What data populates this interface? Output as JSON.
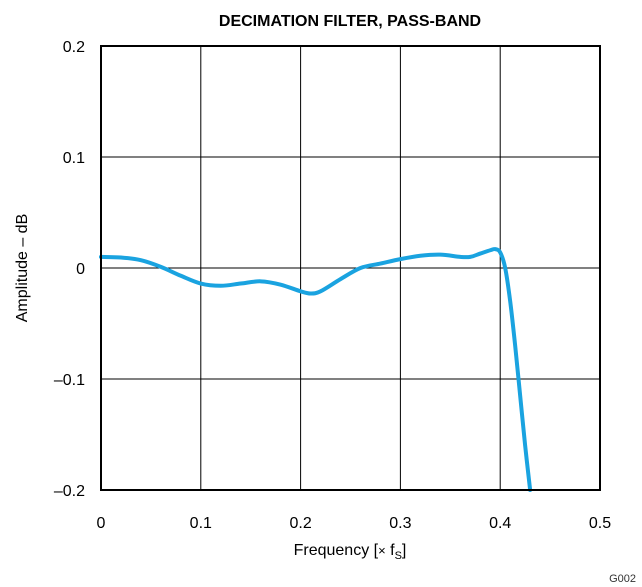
{
  "chart_data": {
    "type": "line",
    "title": "DECIMATION FILTER, PASS-BAND",
    "xlabel": "Frequency [× fS]",
    "xlabel_parts": {
      "prefix": "Frequency [",
      "times": "×",
      "f": " f",
      "sub": "S",
      "suffix": "]"
    },
    "ylabel": "Amplitude – dB",
    "xlim": [
      0,
      0.5
    ],
    "ylim": [
      -0.2,
      0.2
    ],
    "xticks": [
      0,
      0.1,
      0.2,
      0.3,
      0.4,
      0.5
    ],
    "xtick_labels": [
      "0",
      "0.1",
      "0.2",
      "0.3",
      "0.4",
      "0.5"
    ],
    "yticks": [
      0.2,
      0.1,
      0,
      -0.1,
      -0.2
    ],
    "ytick_labels": [
      "0.2",
      "0.1",
      "0",
      "–0.1",
      "–0.2"
    ],
    "grid": true,
    "series_color": "#1AA3E0",
    "series": [
      {
        "name": "",
        "x": [
          0,
          0.02,
          0.04,
          0.06,
          0.08,
          0.1,
          0.12,
          0.14,
          0.16,
          0.18,
          0.2,
          0.21,
          0.22,
          0.24,
          0.26,
          0.28,
          0.3,
          0.32,
          0.34,
          0.36,
          0.37,
          0.38,
          0.39,
          0.395,
          0.4,
          0.405,
          0.41,
          0.415,
          0.42,
          0.425,
          0.43
        ],
        "y": [
          0.01,
          0.0095,
          0.007,
          0.001,
          -0.007,
          -0.014,
          -0.016,
          -0.014,
          -0.012,
          -0.015,
          -0.021,
          -0.023,
          -0.021,
          -0.01,
          0.0,
          0.004,
          0.008,
          0.011,
          0.012,
          0.01,
          0.01,
          0.013,
          0.016,
          0.017,
          0.014,
          0.0,
          -0.03,
          -0.07,
          -0.115,
          -0.16,
          -0.2
        ]
      }
    ]
  },
  "figure_id": "G002"
}
